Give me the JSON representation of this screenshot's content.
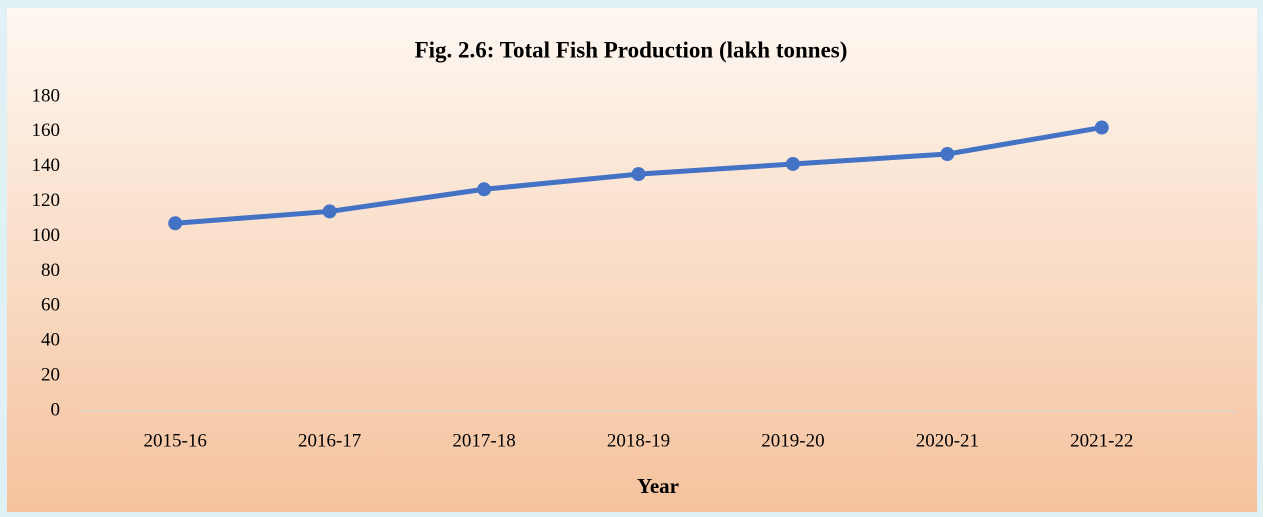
{
  "chart_data": {
    "type": "line",
    "title": "Fig. 2.6: Total Fish Production (lakh tonnes)",
    "x_label": "Year",
    "categories": [
      "2015-16",
      "2016-17",
      "2017-18",
      "2018-19",
      "2019-20",
      "2020-21",
      "2021-22"
    ],
    "series": [
      {
        "name": "Total Fish Production",
        "color": "#4472c4",
        "values": [
          107.6,
          114.4,
          127.1,
          135.8,
          141.6,
          147.3,
          162.5
        ]
      }
    ],
    "ylim": [
      0,
      180
    ],
    "yticks": [
      0,
      20,
      40,
      60,
      80,
      100,
      120,
      140,
      160,
      180
    ],
    "grid": false,
    "legend": false
  }
}
